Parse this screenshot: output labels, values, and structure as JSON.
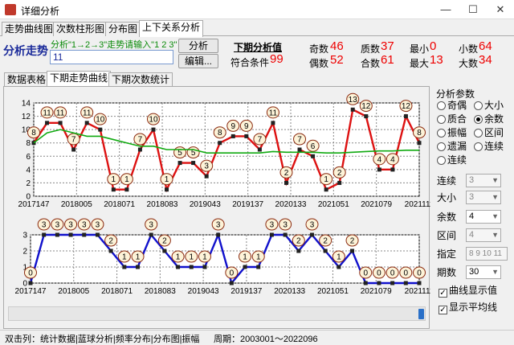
{
  "window": {
    "title": "详细分析",
    "minimize": "—",
    "maximize": "☐",
    "close": "✕"
  },
  "tabs": [
    "走势曲线图",
    "次数柱形图",
    "分布图",
    "上下关系分析"
  ],
  "trend": {
    "title": "分析走势",
    "hint": "分析\"1→2→3\"走势请输入\"1 2 3\"",
    "input_value": "11",
    "analyze_button": "分析",
    "edit_button": "编辑...",
    "next_value_label": "下期分析值",
    "condition_label": "符合条件",
    "condition_value": "99"
  },
  "stats": [
    {
      "label": "奇数",
      "value": "46"
    },
    {
      "label": "质数",
      "value": "37"
    },
    {
      "label": "最小",
      "value": "0"
    },
    {
      "label": "小数",
      "value": "64"
    },
    {
      "label": "偶数",
      "value": "52"
    },
    {
      "label": "合数",
      "value": "61"
    },
    {
      "label": "最大",
      "value": "13"
    },
    {
      "label": "大数",
      "value": "34"
    }
  ],
  "subtabs": [
    "数据表格",
    "下期走势曲线",
    "下期次数统计"
  ],
  "panel": {
    "title": "分析参数",
    "radios": [
      {
        "label": "奇偶",
        "checked": false
      },
      {
        "label": "大小",
        "checked": false
      },
      {
        "label": "质合",
        "checked": false
      },
      {
        "label": "余数",
        "checked": true
      },
      {
        "label": "振幅",
        "checked": false
      },
      {
        "label": "区间",
        "checked": false
      },
      {
        "label": "遗漏",
        "checked": false
      },
      {
        "label": "连续",
        "checked": false
      },
      {
        "label": "连续",
        "checked": false
      }
    ],
    "params": [
      {
        "label": "连续",
        "value": "3",
        "enabled": false
      },
      {
        "label": "大小",
        "value": "3",
        "enabled": false
      },
      {
        "label": "余数",
        "value": "4",
        "enabled": true
      },
      {
        "label": "区间",
        "value": "4",
        "enabled": false
      },
      {
        "label": "指定",
        "value": "8 9 10 11",
        "enabled": false
      },
      {
        "label": "期数",
        "value": "30",
        "enabled": true
      }
    ],
    "checks": [
      {
        "label": "曲线显示值",
        "checked": true
      },
      {
        "label": "显示平均线",
        "checked": true
      }
    ]
  },
  "status": {
    "left": "双击列：统计数据|蓝球分析|频率分布|分布图|振幅",
    "right": "周期：2003001～2022096"
  },
  "colors": {
    "top_line": "#dd1111",
    "avg_line": "#11aa11",
    "bottom_line": "#1111cc",
    "value_red": "#ee0000"
  },
  "chart_data": [
    {
      "type": "line",
      "x_ticks": [
        "2017147",
        "2018005",
        "2018071",
        "2018083",
        "2019043",
        "2019137",
        "2020133",
        "2021051",
        "2021079",
        "2021111"
      ],
      "y_ticks": [
        "14",
        "12",
        "10",
        "8",
        "6",
        "4",
        "2",
        "0"
      ],
      "ylim": [
        0,
        14
      ],
      "grid": true,
      "series": [
        {
          "values": [
            8,
            11,
            11,
            7,
            11,
            10,
            1,
            1,
            7,
            10,
            1,
            5,
            5,
            3,
            8,
            9,
            9,
            7,
            11,
            2,
            7,
            6,
            1,
            2,
            13,
            12,
            4,
            4,
            12,
            8
          ]
        },
        {
          "values": [
            8,
            9.5,
            10,
            9.5,
            9,
            9,
            8.5,
            8,
            7.5,
            7.5,
            7,
            7,
            7,
            6.5,
            6.5,
            6.5,
            6.5,
            6.5,
            6.7,
            6.6,
            6.6,
            6.6,
            6.5,
            6.5,
            6.6,
            6.7,
            6.8,
            6.8,
            6.9,
            6.9
          ]
        }
      ]
    },
    {
      "type": "line",
      "x_ticks": [
        "2017147",
        "2018005",
        "2018071",
        "2018083",
        "2019043",
        "2019137",
        "2020133",
        "2021051",
        "2021079",
        "2021111"
      ],
      "y_ticks": [
        "3",
        "2",
        "1",
        "0"
      ],
      "ylim": [
        0,
        3
      ],
      "grid": true,
      "series": [
        {
          "values": [
            0,
            3,
            3,
            3,
            3,
            3,
            2,
            1,
            1,
            3,
            2,
            1,
            1,
            1,
            3,
            0,
            1,
            1,
            3,
            3,
            2,
            3,
            2,
            1,
            2,
            0,
            0,
            0,
            0,
            0
          ]
        }
      ]
    }
  ]
}
